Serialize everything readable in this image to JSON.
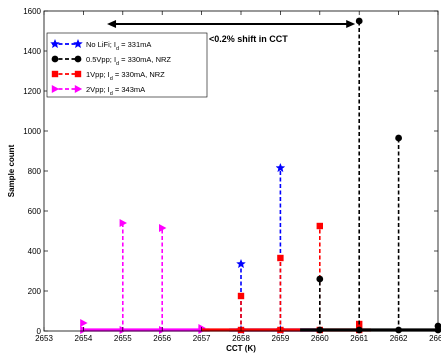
{
  "chart_data": {
    "type": "line",
    "title": "",
    "xlabel": "CCT (K)",
    "ylabel": "Sample count",
    "xlim": [
      2653,
      2663
    ],
    "ylim": [
      0,
      1600
    ],
    "xticks": [
      "2653",
      "2654",
      "2655",
      "2656",
      "2657",
      "2658",
      "2659",
      "2660",
      "2661",
      "2662",
      "2663"
    ],
    "yticks": [
      "0",
      "200",
      "400",
      "600",
      "800",
      "1000",
      "1200",
      "1400",
      "1600"
    ],
    "grid": false,
    "legend_position": "top-left",
    "annotation": {
      "text": "<0.2% shift in CCT",
      "arrow_from_x": 2654.6,
      "arrow_to_x": 2661,
      "y": 1535
    },
    "series": [
      {
        "name": "No LiFi; I",
        "name_sub": "d",
        "name_suffix": " = 331mA",
        "color": "#0000ff",
        "marker": "star",
        "stems": [
          {
            "x": 2658,
            "y": 335
          },
          {
            "x": 2659,
            "y": 815
          }
        ],
        "baseline_range": [
          2657.7,
          2660.1
        ]
      },
      {
        "name": "0.5Vpp; I",
        "name_sub": "d",
        "name_suffix": " = 330mA, NRZ",
        "color": "#000000",
        "marker": "circle",
        "stems": [
          {
            "x": 2660,
            "y": 260
          },
          {
            "x": 2661,
            "y": 1550
          },
          {
            "x": 2662,
            "y": 965
          },
          {
            "x": 2663,
            "y": 25
          }
        ],
        "baseline_range": [
          2659.5,
          2663
        ]
      },
      {
        "name": "1Vpp; I",
        "name_sub": "d",
        "name_suffix": " = 330mA, NRZ",
        "color": "#ff0000",
        "marker": "square",
        "stems": [
          {
            "x": 2658,
            "y": 175
          },
          {
            "x": 2659,
            "y": 365
          },
          {
            "x": 2660,
            "y": 525
          },
          {
            "x": 2661,
            "y": 35
          }
        ],
        "baseline_range": [
          2657,
          2661.3
        ]
      },
      {
        "name": "2Vpp; I",
        "name_sub": "d",
        "name_suffix": " = 343mA",
        "color": "#ff00ff",
        "marker": "triangle",
        "stems": [
          {
            "x": 2654,
            "y": 40
          },
          {
            "x": 2655,
            "y": 540
          },
          {
            "x": 2656,
            "y": 515
          },
          {
            "x": 2657,
            "y": 15
          }
        ],
        "baseline_range": [
          2654,
          2657.2
        ]
      }
    ]
  }
}
